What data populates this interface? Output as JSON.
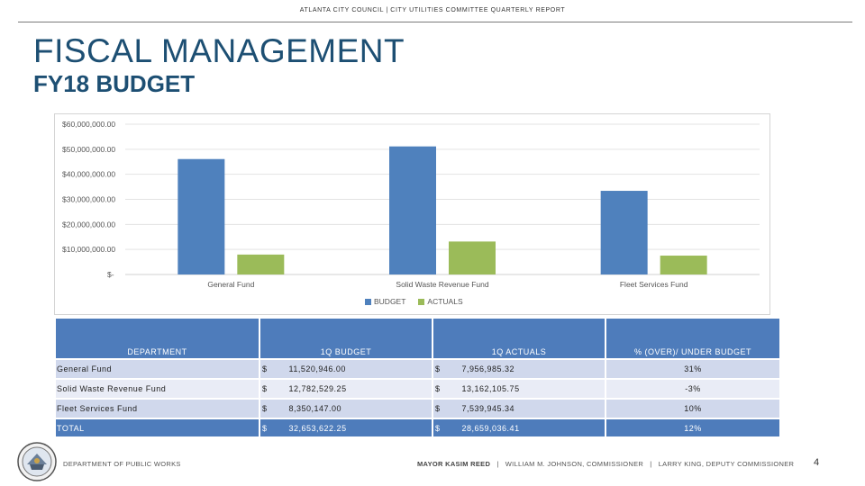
{
  "header": "ATLANTA CITY COUNCIL  |  CITY UTILITIES COMMITTEE QUARTERLY REPORT",
  "title": "FISCAL MANAGEMENT",
  "subtitle": "FY18 BUDGET",
  "chart_data": {
    "type": "bar",
    "categories": [
      "General Fund",
      "Solid Waste Revenue Fund",
      "Fleet Services Fund"
    ],
    "series": [
      {
        "name": "BUDGET",
        "color": "#4f81bd",
        "values": [
          46082000,
          51130000,
          33400000
        ]
      },
      {
        "name": "ACTUALS",
        "color": "#9bbb59",
        "values": [
          7956985.32,
          13162105.75,
          7539945.34
        ]
      }
    ],
    "y_ticks": [
      0,
      10000000,
      20000000,
      30000000,
      40000000,
      50000000,
      60000000
    ],
    "y_tick_labels": [
      "$-",
      "$10,000,000.00",
      "$20,000,000.00",
      "$30,000,000.00",
      "$40,000,000.00",
      "$50,000,000.00",
      "$60,000,000.00"
    ],
    "ylim": [
      0,
      60000000
    ],
    "grid": true,
    "legend_position": "bottom"
  },
  "table": {
    "headers": [
      "DEPARTMENT",
      "1Q BUDGET",
      "1Q ACTUALS",
      "% (OVER)/ UNDER BUDGET"
    ],
    "rows": [
      {
        "dept": "General Fund",
        "budget": "11,520,946.00",
        "actuals": "7,956,985.32",
        "pct": "31%"
      },
      {
        "dept": "Solid Waste Revenue Fund",
        "budget": "12,782,529.25",
        "actuals": "13,162,105.75",
        "pct": "-3%"
      },
      {
        "dept": "Fleet Services Fund",
        "budget": "8,350,147.00",
        "actuals": "7,539,945.34",
        "pct": "10%"
      }
    ],
    "total": {
      "dept": "TOTAL",
      "budget": "32,653,622.25",
      "actuals": "28,659,036.41",
      "pct": "12%"
    },
    "currency": "$"
  },
  "footer": {
    "left": "DEPARTMENT OF PUBLIC WORKS",
    "mayor": "MAYOR KASIM REED",
    "commissioner": "WILLIAM M. JOHNSON, COMMISSIONER",
    "deputy": "LARRY KING, DEPUTY COMMISSIONER",
    "sep": "|",
    "page": "4"
  },
  "icons": {
    "seal": "city-seal-icon"
  }
}
